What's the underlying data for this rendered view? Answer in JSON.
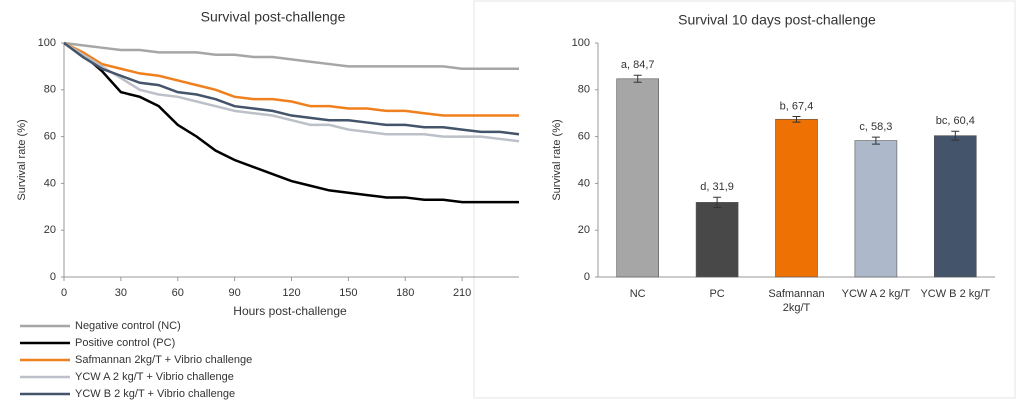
{
  "chart_data": [
    {
      "type": "line",
      "title": "Survival post-challenge",
      "x_label": "Hours post-challenge",
      "y_label": "Survival rate (%)",
      "x": [
        0,
        10,
        20,
        30,
        40,
        50,
        60,
        70,
        80,
        90,
        100,
        110,
        120,
        130,
        140,
        150,
        160,
        170,
        180,
        190,
        200,
        210,
        220,
        230,
        240
      ],
      "xlim": [
        0,
        240
      ],
      "xticks": [
        0,
        30,
        60,
        90,
        120,
        150,
        180,
        210
      ],
      "ylim": [
        0,
        100
      ],
      "yticks": [
        0,
        20,
        40,
        60,
        80,
        100
      ],
      "legend": "bottom",
      "series": [
        {
          "name": "Negative control (NC)",
          "color": "#a6a6a6",
          "values": [
            100,
            99,
            98,
            97,
            97,
            96,
            96,
            96,
            95,
            95,
            94,
            94,
            93,
            92,
            91,
            90,
            90,
            90,
            90,
            90,
            90,
            89,
            89,
            89,
            89
          ]
        },
        {
          "name": "Positive control (PC)",
          "color": "#000000",
          "values": [
            100,
            95,
            88,
            79,
            77,
            73,
            65,
            60,
            54,
            50,
            47,
            44,
            41,
            39,
            37,
            36,
            35,
            34,
            34,
            33,
            33,
            32,
            32,
            32,
            32
          ]
        },
        {
          "name": "Safmannan 2kg/T + Vibrio challenge",
          "color": "#f07f1e",
          "values": [
            100,
            96,
            91,
            89,
            87,
            86,
            84,
            82,
            80,
            77,
            76,
            76,
            75,
            73,
            73,
            72,
            72,
            71,
            71,
            70,
            69,
            69,
            69,
            69,
            69
          ]
        },
        {
          "name": "YCW A 2 kg/T + Vibrio challenge",
          "color": "#bcc0c8",
          "values": [
            100,
            95,
            90,
            85,
            80,
            78,
            77,
            75,
            73,
            71,
            70,
            69,
            67,
            65,
            65,
            63,
            62,
            61,
            61,
            61,
            60,
            60,
            60,
            59,
            58
          ]
        },
        {
          "name": "YCW B 2 kg/T + Vibrio challenge",
          "color": "#44546a",
          "values": [
            100,
            94,
            89,
            86,
            83,
            82,
            79,
            78,
            76,
            73,
            72,
            71,
            69,
            68,
            67,
            67,
            66,
            65,
            65,
            64,
            64,
            63,
            62,
            62,
            61
          ]
        }
      ]
    },
    {
      "type": "bar",
      "title": "Survival 10 days post-challenge",
      "y_label": "Survival rate (%)",
      "categories": [
        "NC",
        "PC",
        "Safmannan 2kg/T",
        "YCW A 2 kg/T",
        "YCW B 2 kg/T"
      ],
      "values": [
        84.7,
        31.9,
        67.4,
        58.3,
        60.4
      ],
      "value_labels": [
        "a, 84,7",
        "d, 31,9",
        "b, 67,4",
        "c, 58,3",
        "bc, 60,4"
      ],
      "errors": [
        1.5,
        2.2,
        1.2,
        1.5,
        1.9
      ],
      "colors": [
        "#a6a6a6",
        "#484848",
        "#ee7203",
        "#adb9ca",
        "#44546a"
      ],
      "ylim": [
        0,
        100
      ],
      "yticks": [
        0,
        20,
        40,
        60,
        80,
        100
      ]
    }
  ]
}
